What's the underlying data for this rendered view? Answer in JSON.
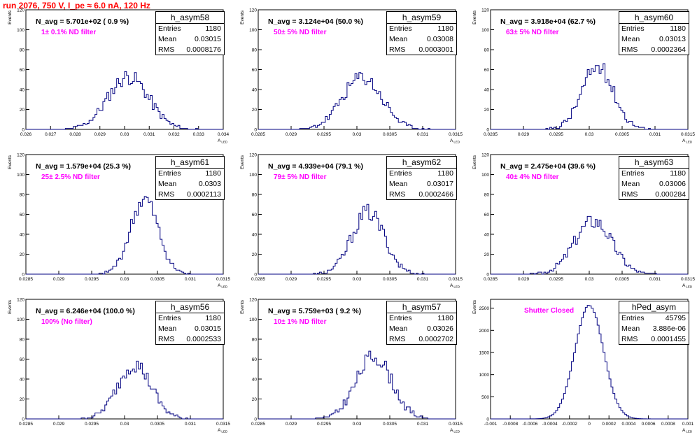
{
  "header": {
    "title": "run 2076,   750 V, I_pe ≈ 6.0 nA, 120 Hz"
  },
  "colors": {
    "title": "#ff0000",
    "annotation": "#ff00ff",
    "histogram_line": "#000080",
    "frame": "#000000"
  },
  "labels": {
    "y_axis": "Events",
    "x_axis": "A",
    "x_axis_sub": "LED",
    "stats_entries": "Entries",
    "stats_mean": "Mean",
    "stats_rms": "RMS"
  },
  "chart_data": [
    {
      "type": "histogram",
      "name": "h_asym58",
      "navg": "N_avg = 5.701e+02 ( 0.9 %)",
      "filter": "1± 0.1% ND filter",
      "entries": "1180",
      "mean": "0.03015",
      "rms": "0.0008176",
      "xlim": [
        0.026,
        0.034
      ],
      "ylim": [
        0,
        120
      ],
      "xticks": [
        "0.026",
        "0.027",
        "0.028",
        "0.029",
        "0.03",
        "0.031",
        "0.032",
        "0.033",
        "0.034"
      ],
      "yticks": [
        "0",
        "20",
        "40",
        "60",
        "80",
        "100",
        "120"
      ],
      "peak": 53,
      "center": 0.03015,
      "sigma": 0.00082,
      "seed": 11
    },
    {
      "type": "histogram",
      "name": "h_asym59",
      "navg": "N_avg = 3.124e+04 (50.0 %)",
      "filter": "50± 5% ND filter",
      "entries": "1180",
      "mean": "0.03008",
      "rms": "0.0003001",
      "xlim": [
        0.0285,
        0.0315
      ],
      "ylim": [
        0,
        120
      ],
      "xticks": [
        "0.0285",
        "0.029",
        "0.0295",
        "0.03",
        "0.0305",
        "0.031",
        "0.0315"
      ],
      "yticks": [
        "0",
        "20",
        "40",
        "60",
        "80",
        "100",
        "120"
      ],
      "peak": 52,
      "center": 0.03008,
      "sigma": 0.0003,
      "seed": 23
    },
    {
      "type": "histogram",
      "name": "h_asym60",
      "navg": "N_avg = 3.918e+04 (62.7 %)",
      "filter": "63± 5% ND filter",
      "entries": "1180",
      "mean": "0.03013",
      "rms": "0.0002364",
      "xlim": [
        0.0285,
        0.0315
      ],
      "ylim": [
        0,
        120
      ],
      "xticks": [
        "0.0285",
        "0.029",
        "0.0295",
        "0.03",
        "0.0305",
        "0.031",
        "0.0315"
      ],
      "yticks": [
        "0",
        "20",
        "40",
        "60",
        "80",
        "100",
        "120"
      ],
      "peak": 63,
      "center": 0.03013,
      "sigma": 0.00024,
      "seed": 37
    },
    {
      "type": "histogram",
      "name": "h_asym61",
      "navg": "N_avg = 1.579e+04 (25.3 %)",
      "filter": "25± 2.5% ND filter",
      "entries": "1180",
      "mean": "0.0303",
      "rms": "0.0002113",
      "xlim": [
        0.0285,
        0.0315
      ],
      "ylim": [
        0,
        120
      ],
      "xticks": [
        "0.0285",
        "0.029",
        "0.0295",
        "0.03",
        "0.0305",
        "0.031",
        "0.0315"
      ],
      "yticks": [
        "0",
        "20",
        "40",
        "60",
        "80",
        "100",
        "120"
      ],
      "peak": 75,
      "center": 0.0303,
      "sigma": 0.00021,
      "seed": 41
    },
    {
      "type": "histogram",
      "name": "h_asym62",
      "navg": "N_avg = 4.939e+04 (79.1 %)",
      "filter": "79± 5% ND filter",
      "entries": "1180",
      "mean": "0.03017",
      "rms": "0.0002466",
      "xlim": [
        0.0285,
        0.0315
      ],
      "ylim": [
        0,
        120
      ],
      "xticks": [
        "0.0285",
        "0.029",
        "0.0295",
        "0.03",
        "0.0305",
        "0.031",
        "0.0315"
      ],
      "yticks": [
        "0",
        "20",
        "40",
        "60",
        "80",
        "100",
        "120"
      ],
      "peak": 62,
      "center": 0.03017,
      "sigma": 0.000247,
      "seed": 53
    },
    {
      "type": "histogram",
      "name": "h_asym63",
      "navg": "N_avg = 2.475e+04 (39.6 %)",
      "filter": "40± 4% ND filter",
      "entries": "1180",
      "mean": "0.03006",
      "rms": "0.000284",
      "xlim": [
        0.0285,
        0.0315
      ],
      "ylim": [
        0,
        120
      ],
      "xticks": [
        "0.0285",
        "0.029",
        "0.0295",
        "0.03",
        "0.0305",
        "0.031",
        "0.0315"
      ],
      "yticks": [
        "0",
        "20",
        "40",
        "60",
        "80",
        "100",
        "120"
      ],
      "peak": 54,
      "center": 0.03006,
      "sigma": 0.000284,
      "seed": 67
    },
    {
      "type": "histogram",
      "name": "h_asym56",
      "navg": "N_avg = 6.246e+04 (100.0 %)",
      "filter": "100% (No filter)",
      "entries": "1180",
      "mean": "0.03015",
      "rms": "0.0002533",
      "xlim": [
        0.0285,
        0.0315
      ],
      "ylim": [
        0,
        120
      ],
      "xticks": [
        "0.0285",
        "0.029",
        "0.0295",
        "0.03",
        "0.0305",
        "0.031",
        "0.0315"
      ],
      "yticks": [
        "0",
        "20",
        "40",
        "60",
        "80",
        "100",
        "120"
      ],
      "peak": 55,
      "center": 0.03015,
      "sigma": 0.000253,
      "seed": 79
    },
    {
      "type": "histogram",
      "name": "h_asym57",
      "navg": "N_avg = 5.759e+03 ( 9.2 %)",
      "filter": "10± 1% ND filter",
      "entries": "1180",
      "mean": "0.03026",
      "rms": "0.0002702",
      "xlim": [
        0.0285,
        0.0315
      ],
      "ylim": [
        0,
        120
      ],
      "xticks": [
        "0.0285",
        "0.029",
        "0.0295",
        "0.03",
        "0.0305",
        "0.031",
        "0.0315"
      ],
      "yticks": [
        "0",
        "20",
        "40",
        "60",
        "80",
        "100",
        "120"
      ],
      "peak": 63,
      "center": 0.03026,
      "sigma": 0.00027,
      "seed": 83
    },
    {
      "type": "histogram",
      "name": "hPed_asym",
      "navg": "",
      "filter": "Shutter Closed",
      "entries": "45795",
      "mean": "3.886e-06",
      "rms": "0.0001455",
      "xlim": [
        -0.001,
        0.001
      ],
      "ylim": [
        0,
        2700
      ],
      "xticks": [
        "-0.001",
        "-0.0008",
        "-0.0006",
        "-0.0004",
        "-0.0002",
        "0",
        "0.0002",
        "0.0004",
        "0.0006",
        "0.0008",
        "0.001"
      ],
      "yticks": [
        "0",
        "500",
        "1000",
        "1500",
        "2000",
        "2500"
      ],
      "peak": 2560,
      "center": 0.0,
      "sigma": 0.000145,
      "seed": 97
    }
  ]
}
